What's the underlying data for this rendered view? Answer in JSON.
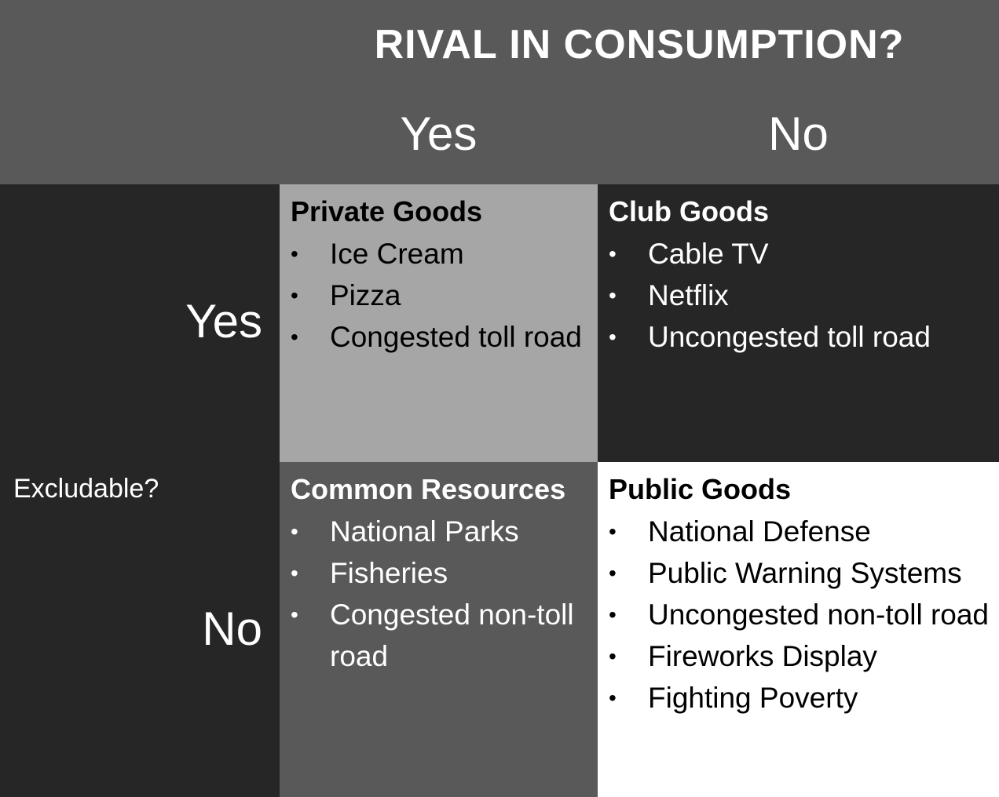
{
  "header": {
    "title": "RIVAL IN CONSUMPTION?",
    "columns": [
      "Yes",
      "No"
    ]
  },
  "side": {
    "label": "Excludable?",
    "rows": [
      "Yes",
      "No"
    ]
  },
  "cells": {
    "private": {
      "title": "Private Goods",
      "items": [
        "Ice Cream",
        "Pizza",
        "Congested toll road"
      ]
    },
    "club": {
      "title": "Club Goods",
      "items": [
        "Cable TV",
        "Netflix",
        "Uncongested toll road"
      ]
    },
    "common": {
      "title": "Common Resources",
      "items": [
        "National Parks",
        "Fisheries",
        "Congested non-toll road"
      ]
    },
    "public": {
      "title": "Public Goods",
      "items": [
        "National Defense",
        "Public Warning Systems",
        "Uncongested non-toll road",
        "Fireworks Display",
        "Fighting Poverty"
      ]
    }
  },
  "colors": {
    "header_band": "#595959",
    "dark": "#262626",
    "light_gray": "#a6a6a6",
    "mid_gray": "#595959",
    "white": "#ffffff"
  },
  "icons": {
    "bullet": "•"
  }
}
